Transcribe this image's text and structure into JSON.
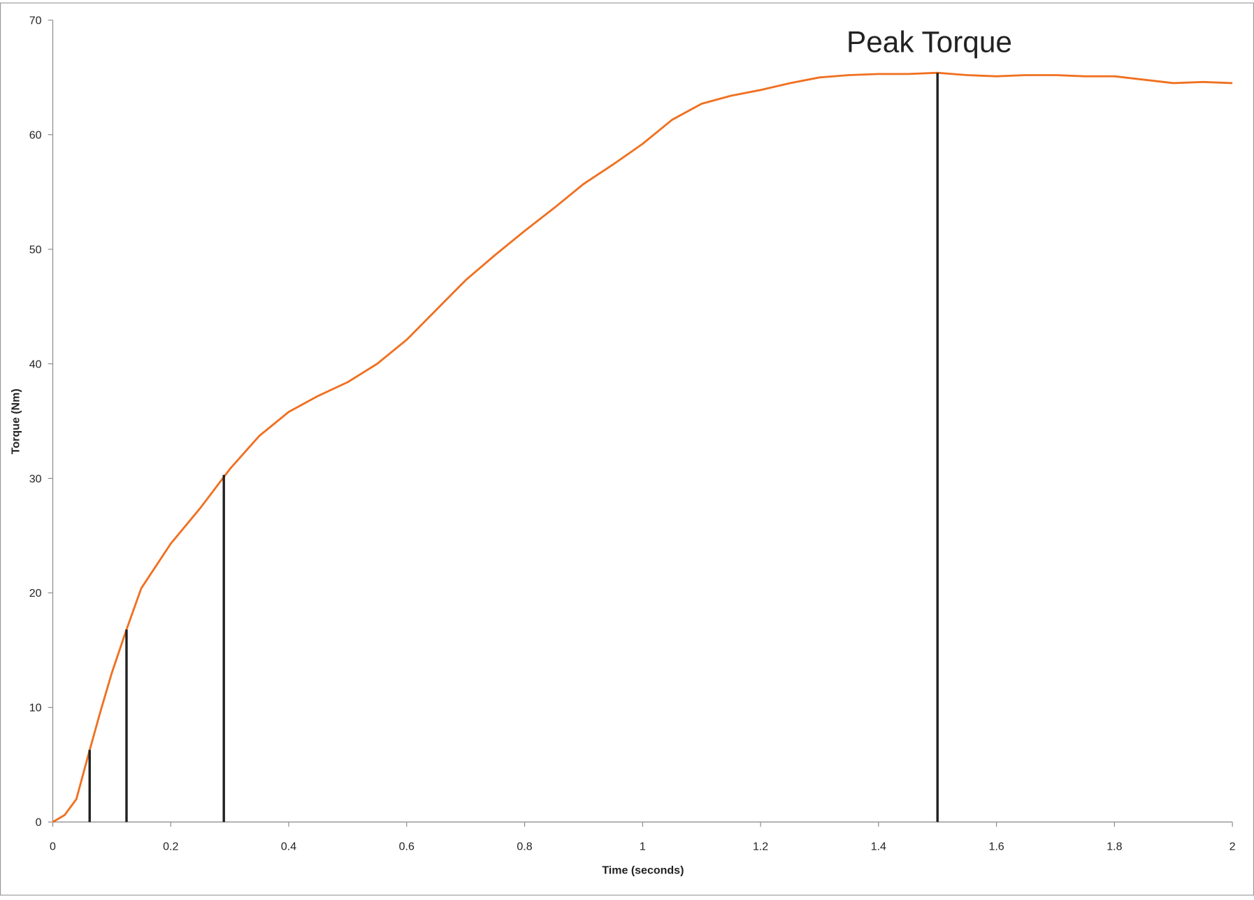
{
  "chart_data": {
    "type": "line",
    "x_label": "Time (seconds)",
    "y_label": "Torque (Nm)",
    "annotation": "Peak Torque",
    "x": [
      0,
      0.02,
      0.04,
      0.06,
      0.08,
      0.1,
      0.125,
      0.15,
      0.2,
      0.25,
      0.3,
      0.35,
      0.4,
      0.45,
      0.5,
      0.55,
      0.6,
      0.65,
      0.7,
      0.75,
      0.8,
      0.85,
      0.9,
      0.95,
      1.0,
      1.05,
      1.1,
      1.15,
      1.2,
      1.25,
      1.3,
      1.35,
      1.4,
      1.45,
      1.5,
      1.55,
      1.6,
      1.65,
      1.7,
      1.75,
      1.8,
      1.85,
      1.9,
      1.95,
      2.0
    ],
    "series": [
      {
        "color": "#f07020",
        "values": [
          0,
          0.6,
          2,
          5.8,
          9.5,
          13,
          16.8,
          20.4,
          24.3,
          27.4,
          30.8,
          33.7,
          35.8,
          37.2,
          38.4,
          40,
          42.1,
          44.7,
          47.3,
          49.5,
          51.6,
          53.6,
          55.7,
          57.4,
          59.2,
          61.3,
          62.7,
          63.4,
          63.9,
          64.5,
          65,
          65.2,
          65.3,
          65.3,
          65.4,
          65.2,
          65.1,
          65.2,
          65.2,
          65.1,
          65.1,
          64.8,
          64.5,
          64.6,
          64.5
        ]
      }
    ],
    "markers": {
      "color": "#222222",
      "x": [
        0.0625,
        0.125,
        0.29,
        1.5
      ],
      "values": [
        6.3,
        16.8,
        30.3,
        65.4
      ]
    },
    "xlim": [
      0,
      2
    ],
    "ylim": [
      0,
      70
    ],
    "xticks": [
      0,
      0.2,
      0.4,
      0.6,
      0.8,
      1,
      1.2,
      1.4,
      1.6,
      1.8,
      2
    ],
    "yticks": [
      0,
      10,
      20,
      30,
      40,
      50,
      60,
      70
    ],
    "grid": false
  }
}
